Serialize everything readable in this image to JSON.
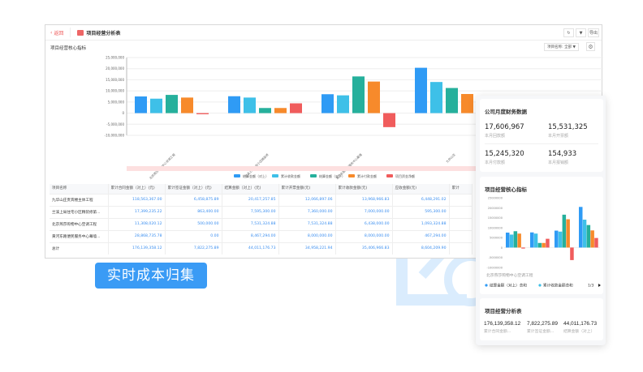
{
  "header": {
    "back": "返回",
    "title": "项目经营分析表",
    "refresh_icon": "↻",
    "filter_icon": "filter",
    "export": "导出"
  },
  "section_title": "项目经营核心指标",
  "filter_label": "项目名称: 全部",
  "main_chart": {
    "type": "bar",
    "yticks": [
      "25,000,000",
      "20,000,000",
      "15,000,000",
      "10,000,000",
      "5,000,000",
      "0",
      "-5,000,000",
      "-10,000,000"
    ],
    "ylim": [
      -10000000,
      25000000
    ],
    "categories": [
      "北京燕莎购物中心空调工程",
      "兰溪上局住宅小区精装修",
      "黄河东路便民服务中心幕墙",
      "九华山庄"
    ],
    "series": [
      {
        "name": "结算金额（对上）",
        "color": "#2f9bf5",
        "values": [
          7500000,
          7600000,
          8500000,
          20400000
        ]
      },
      {
        "name": "累计收款金额",
        "color": "#3ec0e8",
        "values": [
          6500000,
          7000000,
          8000000,
          14000000
        ]
      },
      {
        "name": "结算金额（对下）",
        "color": "#26b09c",
        "values": [
          8200000,
          2300000,
          16500000,
          11300000
        ]
      },
      {
        "name": "累计付款金额",
        "color": "#f78a2b",
        "values": [
          7000000,
          2300000,
          14200000,
          8600000
        ]
      },
      {
        "name": "项目资金净额",
        "color": "#f05c5c",
        "values": [
          -500000,
          4400000,
          -6300000,
          4800000
        ]
      }
    ]
  },
  "table": {
    "headers": [
      "项目名称",
      "累计合同金额（对上）(元)",
      "累计签证金额（对上）(元)",
      "结算金额（对上）(元)",
      "累计开票金额(元)",
      "累计收款金额(元)",
      "应收金额(元)",
      "累计"
    ],
    "rows": [
      [
        "九华山庄贵宾楼主体工程",
        "118,563,367.00",
        "6,458,875.89",
        "20,417,257.85",
        "12,066,897.06",
        "13,968,966.83",
        "6,448,291.02",
        ""
      ],
      [
        "兰溪上局住宅小区精装修第...",
        "17,399,235.22",
        "863,400.00",
        "7,595,300.00",
        "7,360,000.00",
        "7,000,000.00",
        "595,300.00",
        ""
      ],
      [
        "北京燕莎购物中心空调工程",
        "11,308,020.12",
        "500,000.00",
        "7,531,324.88",
        "7,531,324.88",
        "6,438,000.00",
        "1,093,324.88",
        ""
      ],
      [
        "黄河东路便民服务中心幕墙...",
        "28,868,735.78",
        "0.00",
        "8,467,294.00",
        "8,000,000.00",
        "8,000,000.00",
        "467,294.00",
        ""
      ],
      [
        "总计",
        "176,139,358.12",
        "7,822,275.89",
        "44,011,176.73",
        "34,958,221.94",
        "35,406,966.83",
        "8,604,209.90",
        ""
      ]
    ]
  },
  "badge": "实时成本归集",
  "mobile": {
    "finance": {
      "title": "公司月度财务数据",
      "items": [
        {
          "value": "17,606,967",
          "label": "本月回款额"
        },
        {
          "value": "15,531,325",
          "label": "本月开票额"
        },
        {
          "value": "15,245,320",
          "label": "本月付款额"
        },
        {
          "value": "154,933",
          "label": "本月报销额"
        }
      ]
    },
    "core": {
      "title": "项目经营核心指标",
      "yticks": [
        "25000000",
        "20000000",
        "15000000",
        "10000000",
        "5000000",
        "0",
        "-5000000",
        "-10000000"
      ],
      "xlabel": "北京燕莎购物中心空调工程",
      "legend": [
        "结算金额（对上）总和",
        "累计收款金额总和"
      ],
      "pager": "1/3"
    },
    "analysis": {
      "title": "项目经营分析表",
      "items": [
        {
          "value": "176,139,358.12",
          "label": "累计合同金额..."
        },
        {
          "value": "7,822,275.89",
          "label": "累计签证金额..."
        },
        {
          "value": "44,011,176.73",
          "label": "结算金额（对上）"
        }
      ]
    }
  }
}
